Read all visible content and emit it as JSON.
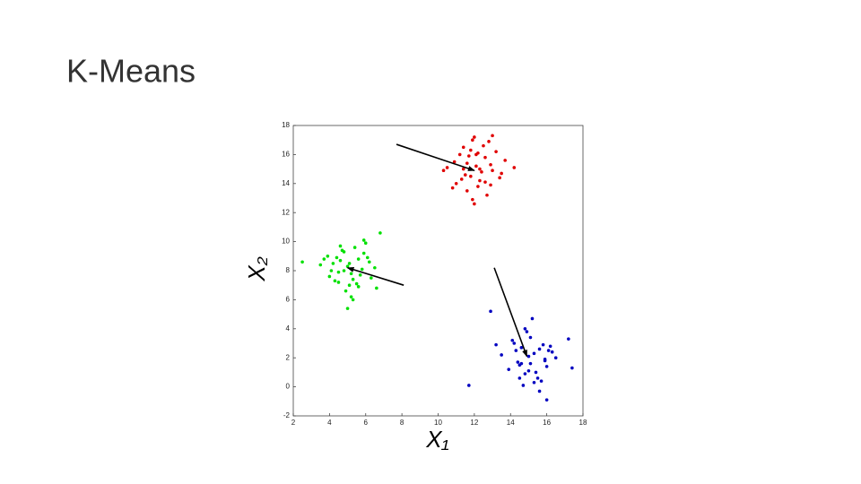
{
  "chart_data": {
    "type": "scatter",
    "title": "K-Means",
    "xlabel": "X₁",
    "ylabel": "X₂",
    "xlim": [
      2,
      18
    ],
    "xticks": [
      2,
      4,
      6,
      8,
      10,
      12,
      14,
      16,
      18
    ],
    "ylim": [
      -2,
      18
    ],
    "yticks": [
      -2,
      0,
      2,
      4,
      6,
      8,
      10,
      12,
      14,
      16,
      18
    ],
    "series": [
      {
        "color": "#e00000",
        "x": [
          12.1,
          11.5,
          12.6,
          13.0,
          11.8,
          12.3,
          10.9,
          11.2,
          12.9,
          13.4,
          11.6,
          12.0,
          12.5,
          11.0,
          13.7,
          12.2,
          11.4,
          12.8,
          10.5,
          11.9,
          12.4,
          13.2,
          11.7,
          12.7,
          11.3,
          12.1,
          10.8,
          13.5,
          11.6,
          12.3,
          12.0,
          11.9,
          12.6,
          10.3,
          14.2,
          11.4,
          12.9,
          13.0,
          11.8,
          12.2
        ],
        "y": [
          15.2,
          14.6,
          15.8,
          14.9,
          16.3,
          14.2,
          15.5,
          16.0,
          15.3,
          14.4,
          13.5,
          17.2,
          16.6,
          14.0,
          15.6,
          13.8,
          15.0,
          16.9,
          15.1,
          12.9,
          14.8,
          16.2,
          15.9,
          13.2,
          14.3,
          16.0,
          13.7,
          14.7,
          15.4,
          15.0,
          12.6,
          17.0,
          14.1,
          14.9,
          15.1,
          16.5,
          13.9,
          17.3,
          14.5,
          16.1
        ]
      },
      {
        "color": "#00e000",
        "x": [
          5.0,
          4.5,
          5.6,
          4.2,
          5.9,
          5.3,
          4.8,
          6.2,
          3.9,
          5.1,
          4.6,
          5.7,
          6.5,
          4.3,
          5.4,
          4.9,
          3.5,
          6.0,
          5.2,
          4.7,
          5.8,
          4.4,
          5.5,
          6.3,
          4.1,
          5.0,
          2.5,
          6.8,
          4.6,
          5.3,
          5.9,
          4.0,
          5.6,
          6.1,
          4.8,
          5.2,
          3.7,
          6.6,
          5.1,
          4.5
        ],
        "y": [
          8.3,
          7.9,
          8.8,
          8.5,
          9.2,
          7.4,
          8.0,
          8.6,
          9.0,
          7.0,
          8.7,
          7.7,
          8.2,
          7.3,
          9.6,
          6.6,
          8.4,
          9.9,
          6.2,
          9.4,
          8.1,
          8.9,
          7.1,
          7.5,
          8.0,
          5.4,
          8.6,
          10.6,
          9.7,
          6.0,
          10.1,
          7.6,
          6.9,
          8.9,
          9.3,
          7.8,
          8.8,
          6.8,
          8.5,
          7.2
        ]
      },
      {
        "color": "#0000c0",
        "x": [
          15.0,
          14.5,
          15.6,
          14.2,
          15.9,
          15.3,
          14.8,
          16.2,
          13.9,
          15.1,
          14.6,
          15.7,
          16.5,
          14.3,
          15.4,
          14.9,
          13.5,
          16.0,
          15.2,
          14.7,
          15.8,
          14.4,
          15.5,
          16.3,
          14.1,
          15.0,
          11.7,
          17.4,
          14.6,
          15.3,
          15.9,
          12.9,
          15.6,
          16.1,
          14.8,
          16.0,
          13.2,
          17.2,
          15.1,
          14.5
        ],
        "y": [
          2.1,
          1.5,
          2.6,
          3.0,
          1.8,
          2.3,
          0.9,
          2.8,
          1.2,
          3.4,
          1.6,
          0.4,
          2.0,
          2.5,
          1.0,
          3.8,
          2.2,
          1.4,
          4.7,
          0.1,
          2.9,
          1.7,
          0.6,
          2.4,
          3.2,
          1.1,
          0.1,
          1.3,
          2.7,
          0.3,
          1.9,
          5.2,
          -0.3,
          2.5,
          4.0,
          -0.9,
          2.9,
          3.3,
          1.6,
          0.6
        ]
      }
    ],
    "arrows": [
      {
        "from": [
          7.7,
          16.7
        ],
        "to": [
          12.0,
          14.9
        ]
      },
      {
        "from": [
          8.1,
          7.0
        ],
        "to": [
          5.0,
          8.2
        ]
      },
      {
        "from": [
          13.1,
          8.2
        ],
        "to": [
          14.9,
          2.1
        ]
      }
    ]
  }
}
